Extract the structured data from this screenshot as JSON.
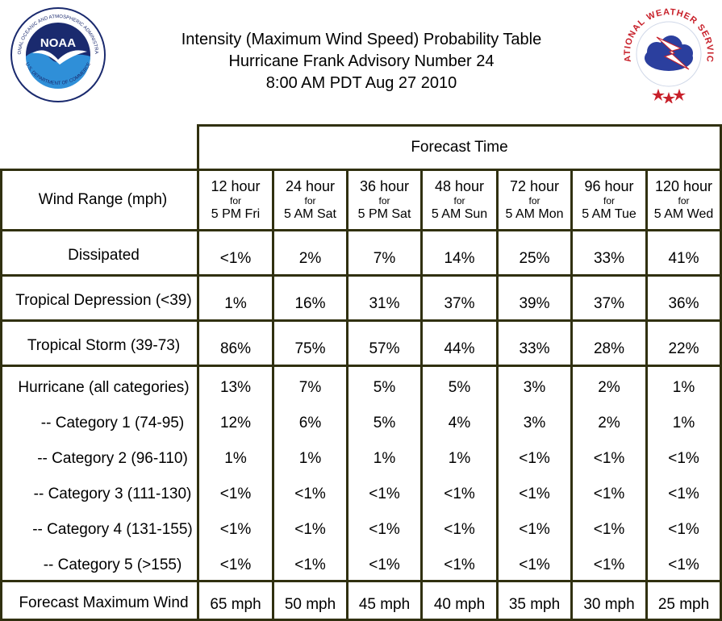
{
  "header": {
    "title_lines": [
      "Intensity (Maximum Wind Speed) Probability Table",
      "Hurricane Frank Advisory Number 24",
      "8:00 AM PDT Aug 27 2010"
    ],
    "noaa_logo": {
      "label": "NOAA",
      "ring_text": "NATIONAL OCEANIC AND ATMOSPHERIC ADMINISTRATION",
      "ring_text_bottom": "U.S. DEPARTMENT OF COMMERCE",
      "colors": {
        "navy": "#1a2a6e",
        "sky": "#2f8fd8",
        "white": "#ffffff"
      }
    },
    "nws_logo": {
      "ring_text": "NATIONAL WEATHER SERVICE",
      "colors": {
        "red": "#c8202a",
        "blue": "#1f3a93",
        "cloud": "#2b3f9e"
      }
    }
  },
  "table": {
    "forecast_time_label": "Forecast Time",
    "row_header_label": "Wind Range (mph)",
    "columns": [
      {
        "hours": "12 hour",
        "for": "for",
        "time": "5 PM Fri"
      },
      {
        "hours": "24 hour",
        "for": "for",
        "time": "5 AM Sat"
      },
      {
        "hours": "36 hour",
        "for": "for",
        "time": "5 PM Sat"
      },
      {
        "hours": "48 hour",
        "for": "for",
        "time": "5 AM Sun"
      },
      {
        "hours": "72 hour",
        "for": "for",
        "time": "5 AM Mon"
      },
      {
        "hours": "96 hour",
        "for": "for",
        "time": "5 AM Tue"
      },
      {
        "hours": "120 hour",
        "for": "for",
        "time": "5 AM Wed"
      }
    ],
    "rows": [
      {
        "label": "Dissipated",
        "values": [
          "<1%",
          "2%",
          "7%",
          "14%",
          "25%",
          "33%",
          "41%"
        ]
      },
      {
        "label": "Tropical Depression (<39)",
        "values": [
          "1%",
          "16%",
          "31%",
          "37%",
          "39%",
          "37%",
          "36%"
        ]
      },
      {
        "label": "Tropical Storm (39-73)",
        "values": [
          "86%",
          "75%",
          "57%",
          "44%",
          "33%",
          "28%",
          "22%"
        ]
      },
      {
        "label": "Hurricane (all categories)",
        "values": [
          "13%",
          "7%",
          "5%",
          "5%",
          "3%",
          "2%",
          "1%"
        ]
      },
      {
        "label": "-- Category 1 (74-95)",
        "values": [
          "12%",
          "6%",
          "5%",
          "4%",
          "3%",
          "2%",
          "1%"
        ]
      },
      {
        "label": "-- Category 2 (96-110)",
        "values": [
          "1%",
          "1%",
          "1%",
          "1%",
          "<1%",
          "<1%",
          "<1%"
        ]
      },
      {
        "label": "-- Category 3 (111-130)",
        "values": [
          "<1%",
          "<1%",
          "<1%",
          "<1%",
          "<1%",
          "<1%",
          "<1%"
        ]
      },
      {
        "label": "-- Category 4 (131-155)",
        "values": [
          "<1%",
          "<1%",
          "<1%",
          "<1%",
          "<1%",
          "<1%",
          "<1%"
        ]
      },
      {
        "label": "-- Category 5 (>155)",
        "values": [
          "<1%",
          "<1%",
          "<1%",
          "<1%",
          "<1%",
          "<1%",
          "<1%"
        ]
      },
      {
        "label": "Forecast Maximum Wind",
        "values": [
          "65 mph",
          "50 mph",
          "45 mph",
          "40 mph",
          "35 mph",
          "30 mph",
          "25 mph"
        ]
      }
    ],
    "border_color": "#303010"
  }
}
